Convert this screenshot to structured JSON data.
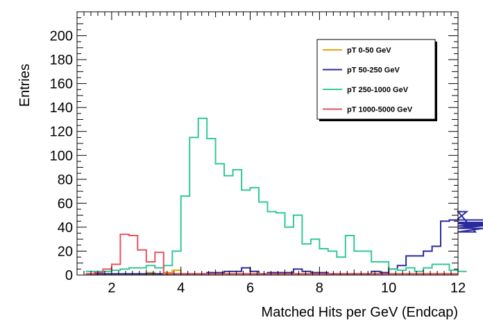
{
  "chart_data": {
    "type": "histogram",
    "title": "",
    "xlabel": "Matched Hits per GeV (Endcap)",
    "ylabel": "Entries",
    "xlim": [
      1.0,
      12.0
    ],
    "ylim": [
      0,
      220
    ],
    "x_ticks": [
      2,
      4,
      6,
      8,
      10,
      12
    ],
    "y_ticks": [
      0,
      20,
      40,
      60,
      80,
      100,
      120,
      140,
      160,
      180,
      200
    ],
    "bin_width": 0.25,
    "x_start": 1.25,
    "legend_position": "top-right",
    "grid": false,
    "series": [
      {
        "name": "pT 0-50 GeV",
        "color": "#f0a000",
        "values": [
          1,
          1,
          1,
          1,
          1,
          1,
          1,
          2,
          1,
          2,
          4,
          1,
          1,
          1,
          1,
          1,
          1,
          1,
          1,
          1,
          1,
          1,
          1,
          1,
          1,
          1,
          1,
          1,
          1,
          1,
          1,
          1,
          1,
          1,
          1,
          1,
          1,
          1,
          1,
          1,
          1,
          1,
          1,
          1
        ]
      },
      {
        "name": "pT 50-250 GeV",
        "color": "#2a2a9c",
        "values": [
          1,
          1,
          1,
          1,
          1,
          1,
          1,
          1,
          1,
          1,
          1,
          1,
          1,
          1,
          2,
          2,
          3,
          3,
          6,
          3,
          1,
          2,
          2,
          2,
          5,
          3,
          2,
          2,
          1,
          1,
          1,
          1,
          1,
          3,
          2,
          5,
          8,
          16,
          16,
          20,
          24,
          45,
          46,
          47,
          53,
          36,
          39,
          43,
          43,
          39,
          44,
          41,
          46
        ]
      },
      {
        "name": "pT 250-1000 GeV",
        "color": "#30c896",
        "values": [
          3,
          3,
          3,
          4,
          5,
          6,
          6,
          8,
          6,
          8,
          20,
          66,
          115,
          131,
          114,
          93,
          83,
          88,
          71,
          73,
          61,
          53,
          52,
          40,
          50,
          26,
          30,
          22,
          20,
          15,
          33,
          20,
          20,
          11,
          11,
          5,
          4,
          6,
          3,
          6,
          9,
          9,
          4,
          3,
          3
        ]
      },
      {
        "name": "pT 1000-5000 GeV",
        "color": "#e85060",
        "values": [
          1,
          2,
          5,
          9,
          34,
          33,
          21,
          11,
          19,
          1,
          1,
          1,
          1,
          1,
          1,
          1,
          1,
          1,
          1,
          1,
          1,
          1,
          1,
          1,
          1,
          1,
          1,
          1,
          1,
          1,
          1,
          1,
          1,
          1,
          1,
          1,
          1,
          1,
          1,
          1,
          1,
          1,
          1,
          1
        ]
      }
    ]
  }
}
